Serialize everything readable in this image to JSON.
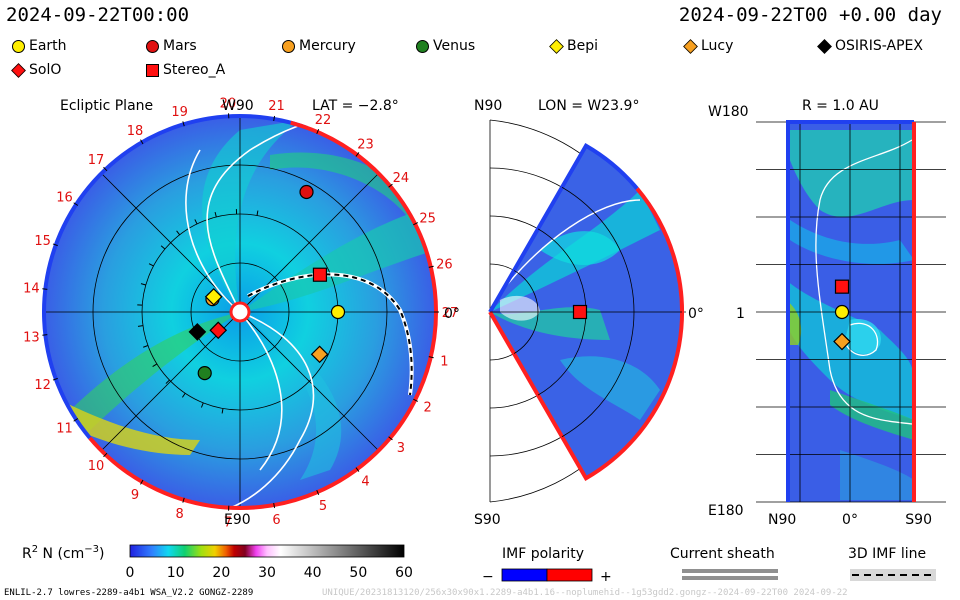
{
  "header": {
    "time_left": "2024-09-22T00:00",
    "time_right": "2024-09-22T00 +0.00 day"
  },
  "legend": [
    {
      "name": "Earth",
      "shape": "circle",
      "color": "#ffee00"
    },
    {
      "name": "Mars",
      "shape": "circle",
      "color": "#e01010"
    },
    {
      "name": "Mercury",
      "shape": "circle",
      "color": "#f7a020"
    },
    {
      "name": "Venus",
      "shape": "circle",
      "color": "#208020"
    },
    {
      "name": "Bepi",
      "shape": "diamond",
      "color": "#ffee00"
    },
    {
      "name": "Lucy",
      "shape": "diamond",
      "color": "#f7a020"
    },
    {
      "name": "OSIRIS-APEX",
      "shape": "diamond",
      "color": "#000000"
    },
    {
      "name": "SolO",
      "shape": "diamond",
      "color": "#ff1010"
    },
    {
      "name": "Stereo_A",
      "shape": "square",
      "color": "#ff1010"
    }
  ],
  "chart_data": [
    {
      "type": "heatmap",
      "panel": "ecliptic",
      "title": "Ecliptic Plane",
      "lat_label": "LAT = −2.8°",
      "top_label": "W90",
      "bottom_label": "E90",
      "right_label": "0°",
      "carrington_ticks": [
        "1",
        "2",
        "3",
        "4",
        "5",
        "6",
        "7",
        "8",
        "9",
        "10",
        "11",
        "12",
        "13",
        "14",
        "15",
        "16",
        "17",
        "18",
        "19",
        "20",
        "21",
        "22",
        "23",
        "24",
        "25",
        "26",
        "27"
      ],
      "carrington_angles_deg": [
        -13.3,
        -26.7,
        -40,
        -53.3,
        -66.7,
        -80,
        -93.3,
        -106.7,
        -120,
        -133.3,
        -146.7,
        -160,
        -173.3,
        173.3,
        160,
        146.7,
        133.3,
        120,
        106.7,
        93.3,
        80,
        66.7,
        53.3,
        40,
        26.7,
        13.3,
        0
      ],
      "grid_radii_au": [
        0.5,
        1.0,
        1.5
      ],
      "bodies": [
        {
          "name": "Earth",
          "r_au": 1.0,
          "lon_deg": 0
        },
        {
          "name": "Mars",
          "r_au": 1.4,
          "lon_deg": 61
        },
        {
          "name": "Mercury",
          "r_au": 0.31,
          "lon_deg": 155
        },
        {
          "name": "Venus",
          "r_au": 0.72,
          "lon_deg": -120
        },
        {
          "name": "Bepi",
          "r_au": 0.31,
          "lon_deg": 150
        },
        {
          "name": "Lucy",
          "r_au": 0.92,
          "lon_deg": -28
        },
        {
          "name": "OSIRIS-APEX",
          "r_au": 0.48,
          "lon_deg": -155
        },
        {
          "name": "SolO",
          "r_au": 0.29,
          "lon_deg": -140
        },
        {
          "name": "Stereo_A",
          "r_au": 0.9,
          "lon_deg": 25
        }
      ]
    },
    {
      "type": "heatmap",
      "panel": "meridional",
      "lon_label": "LON = W23.9°",
      "top_label": "N90",
      "bottom_label": "S90",
      "right_label": "0°",
      "bodies": [
        {
          "name": "Stereo_A",
          "r_au": 0.9,
          "lat_deg": 0
        }
      ]
    },
    {
      "type": "heatmap",
      "panel": "sphere",
      "r_label": "R = 1.0 AU",
      "top_left_label": "W180",
      "mid_left_label": "1",
      "bottom_left_label": "E180",
      "x_ticks": [
        "N90",
        "0°",
        "S90"
      ],
      "bodies": [
        {
          "name": "Stereo_A",
          "lat_deg": 0,
          "lon_deg": 24
        },
        {
          "name": "Earth",
          "lat_deg": 0,
          "lon_deg": 0
        },
        {
          "name": "Lucy",
          "lat_deg": 0,
          "lon_deg": -28
        }
      ]
    }
  ],
  "colorbar": {
    "label_prefix": "R",
    "label_sup": "2",
    "label_rest": " N (cm",
    "label_unit_sup": "−3",
    "label_close": ")",
    "ticks": [
      "0",
      "10",
      "20",
      "30",
      "40",
      "50",
      "60"
    ],
    "range": [
      0,
      60
    ]
  },
  "imf_polarity": {
    "title": "IMF polarity",
    "minus": "−",
    "plus": "+",
    "neg_color": "#0000ff",
    "pos_color": "#ff0000"
  },
  "current_sheath": {
    "title": "Current sheath"
  },
  "imf_line": {
    "title": "3D IMF line"
  },
  "footer": {
    "left": "ENLIL-2.7 lowres-2289-a4b1 WSA_V2.2 GONGZ-2289",
    "right": "UNIQUE/20231813120/256x30x90x1.2289-a4b1.16--noplumehid--1g53gdd2.gongz--2024-09-22T00    2024-09-22"
  }
}
